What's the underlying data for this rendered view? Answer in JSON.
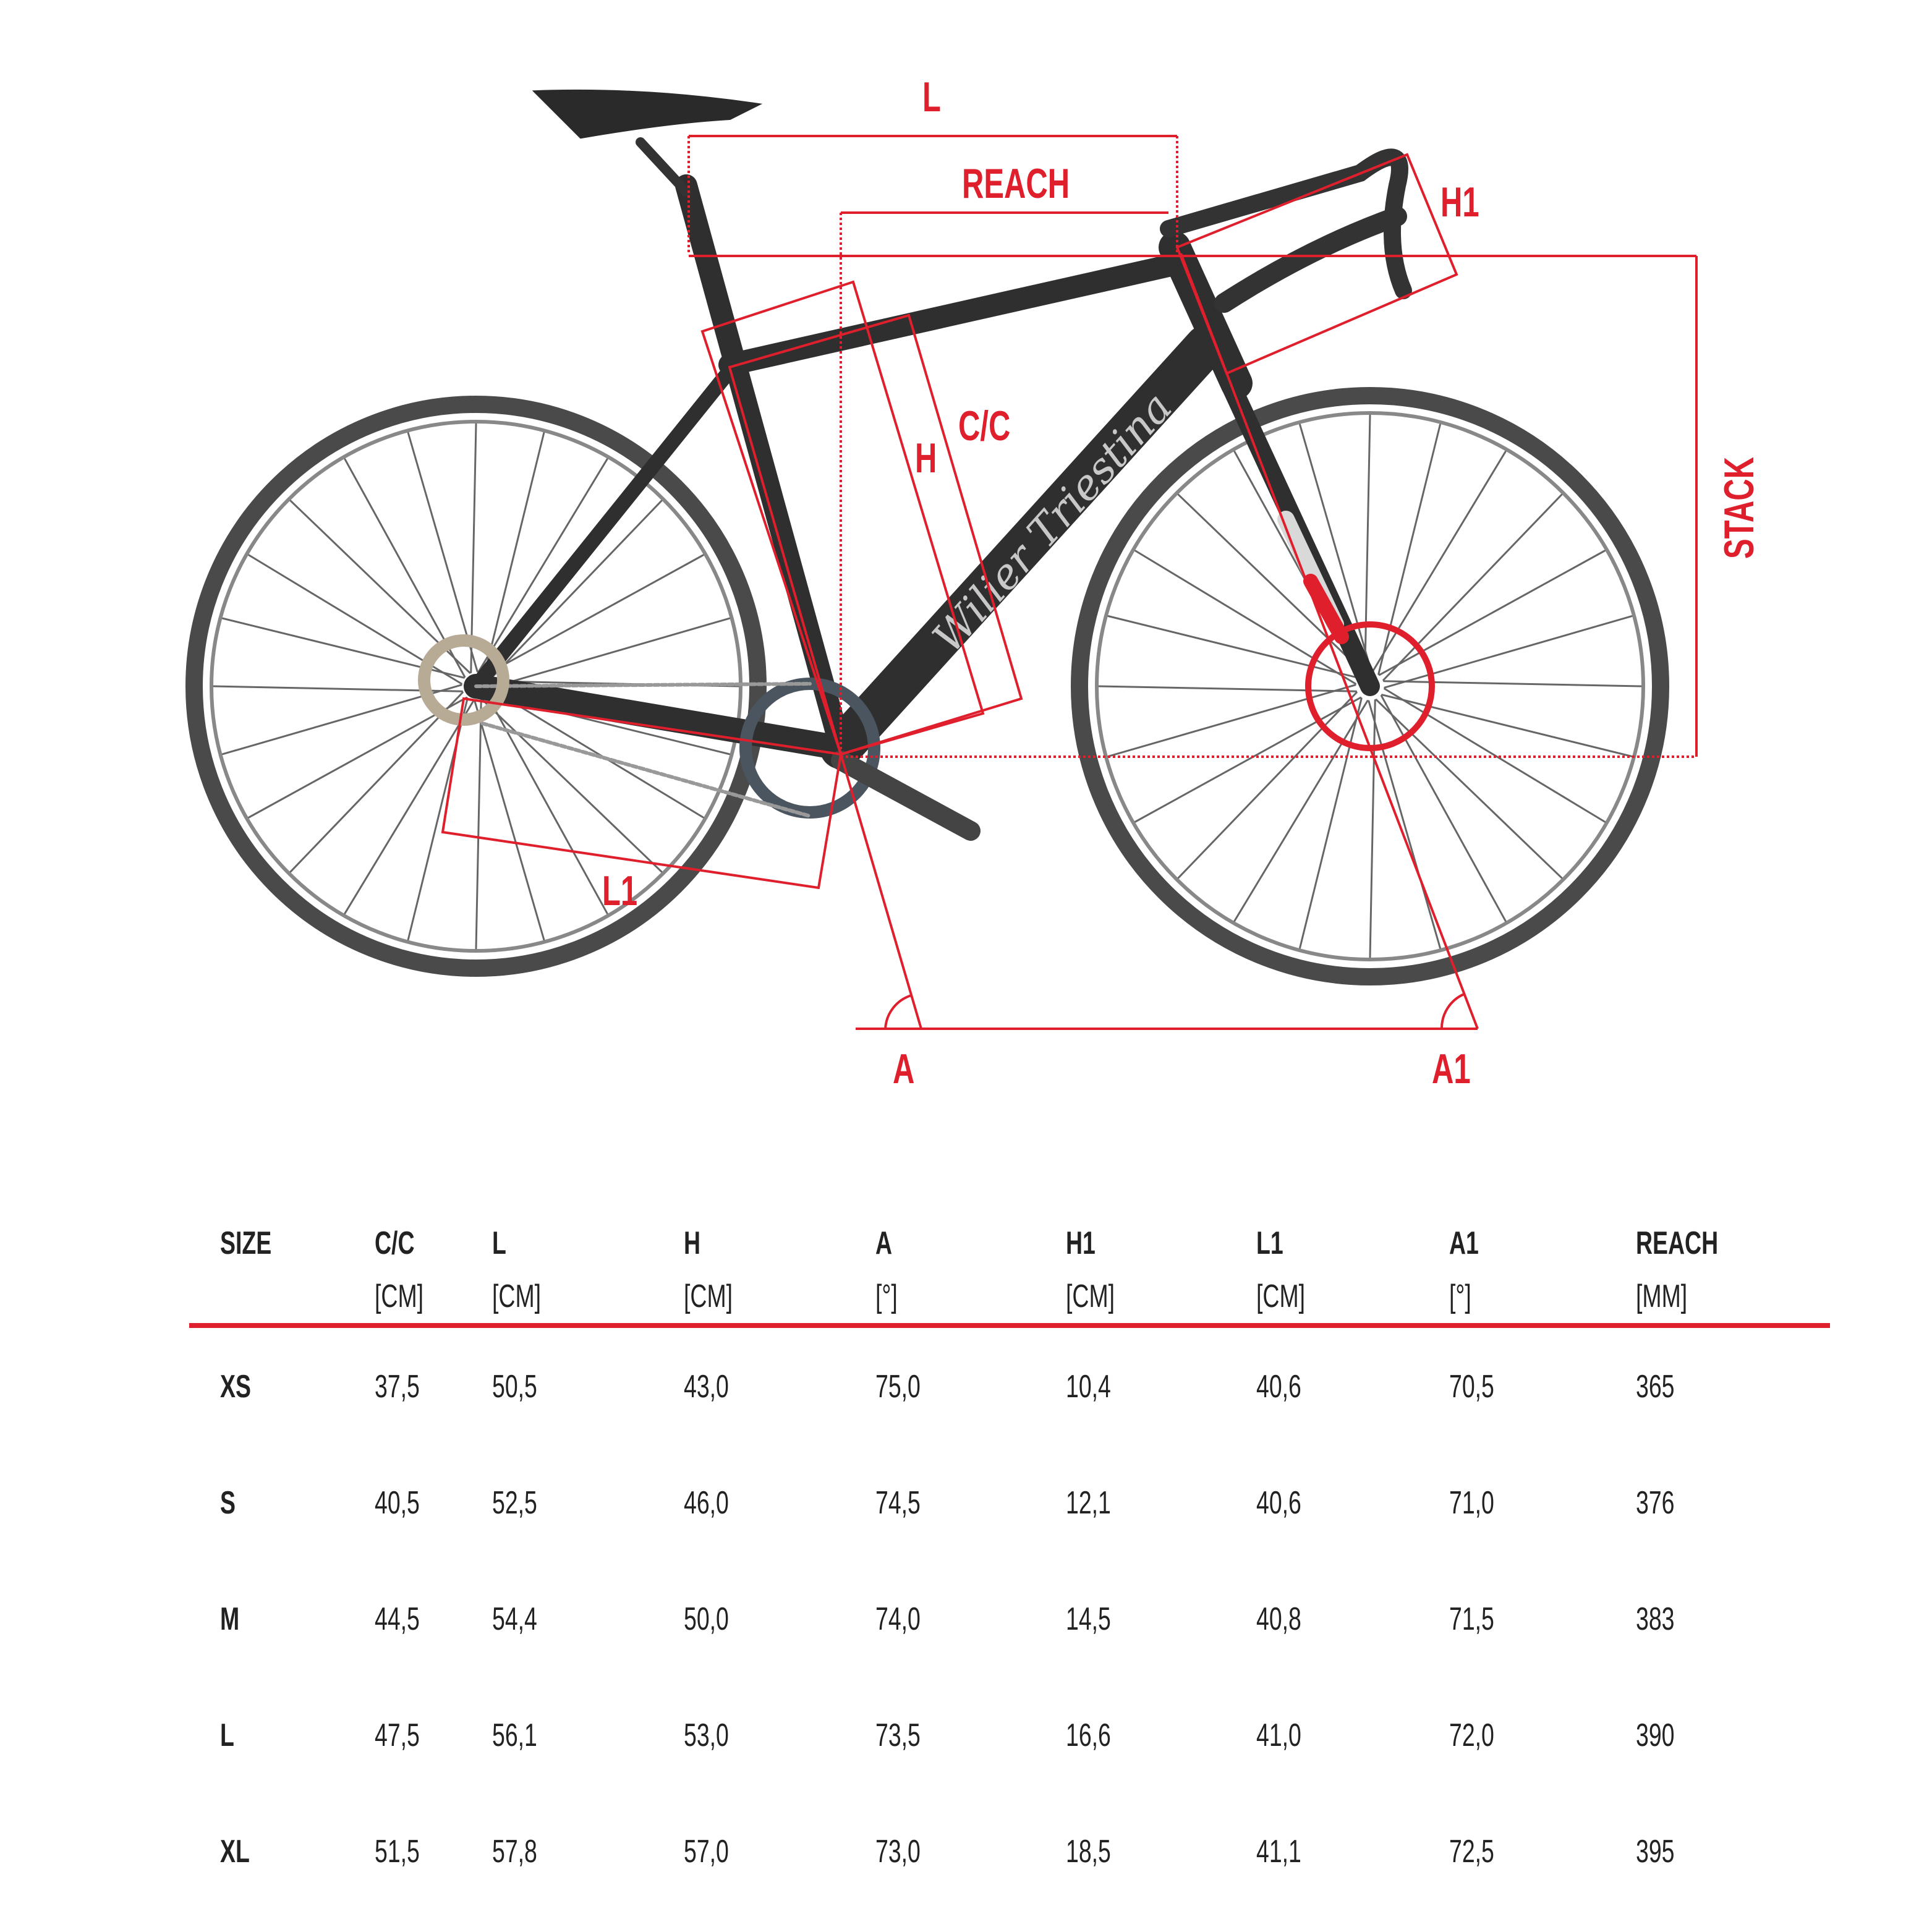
{
  "diagram": {
    "brand": "Wilier Triestina",
    "accent_color": "#e01f2d",
    "labels": {
      "L": "L",
      "reach": "REACH",
      "h1": "H1",
      "cc": "C/C",
      "h": "H",
      "stack": "STACK",
      "l1": "L1",
      "a": "A",
      "a1": "A1"
    }
  },
  "table": {
    "columns": [
      {
        "name": "SIZE",
        "unit": ""
      },
      {
        "name": "C/C",
        "unit": "[CM]"
      },
      {
        "name": "L",
        "unit": "[CM]"
      },
      {
        "name": "H",
        "unit": "[CM]"
      },
      {
        "name": "A",
        "unit": "[°]"
      },
      {
        "name": "H1",
        "unit": "[CM]"
      },
      {
        "name": "L1",
        "unit": "[CM]"
      },
      {
        "name": "A1",
        "unit": "[°]"
      },
      {
        "name": "REACH",
        "unit": "[MM]"
      }
    ],
    "rows": [
      [
        "XS",
        "37,5",
        "50,5",
        "43,0",
        "75,0",
        "10,4",
        "40,6",
        "70,5",
        "365"
      ],
      [
        "S",
        "40,5",
        "52,5",
        "46,0",
        "74,5",
        "12,1",
        "40,6",
        "71,0",
        "376"
      ],
      [
        "M",
        "44,5",
        "54,4",
        "50,0",
        "74,0",
        "14,5",
        "40,8",
        "71,5",
        "383"
      ],
      [
        "L",
        "47,5",
        "56,1",
        "53,0",
        "73,5",
        "16,6",
        "41,0",
        "72,0",
        "390"
      ],
      [
        "XL",
        "51,5",
        "57,8",
        "57,0",
        "73,0",
        "18,5",
        "41,1",
        "72,5",
        "395"
      ]
    ]
  }
}
